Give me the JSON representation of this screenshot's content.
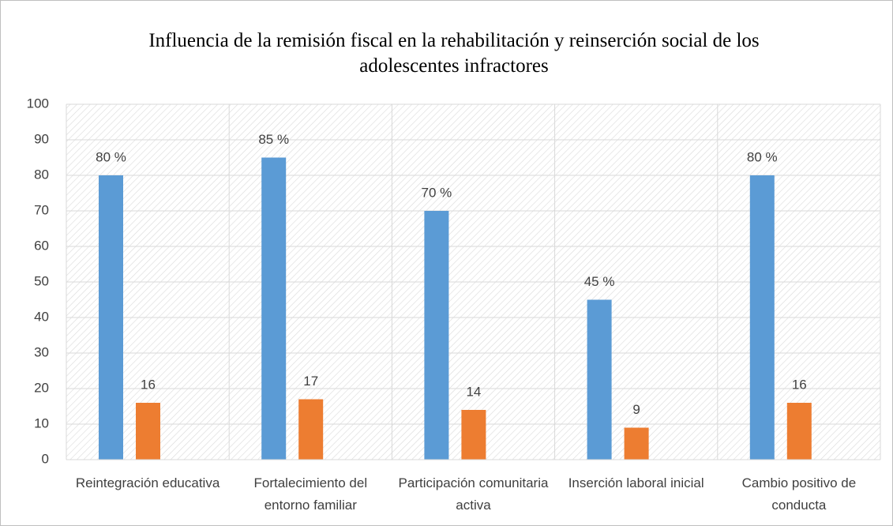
{
  "chart_data": {
    "type": "bar",
    "title": "Influencia de la remisión fiscal en la rehabilitación y reinserción social de los adolescentes infractores",
    "categories": [
      "Reintegración educativa",
      "Fortalecimiento del entorno familiar",
      "Participación comunitaria activa",
      "Inserción laboral inicial",
      "Cambio positivo de conducta"
    ],
    "series": [
      {
        "color": "#5b9bd5",
        "values": [
          80,
          85,
          70,
          45,
          80
        ],
        "value_labels": [
          "80 %",
          "85 %",
          "70 %",
          "45 %",
          "80 %"
        ]
      },
      {
        "color": "#ed7d31",
        "values": [
          16,
          17,
          14,
          9,
          16
        ]
      }
    ],
    "ylim": [
      0,
      100
    ],
    "yticks": [
      0,
      10,
      20,
      30,
      40,
      50,
      60,
      70,
      80,
      90,
      100
    ],
    "grid": true
  }
}
